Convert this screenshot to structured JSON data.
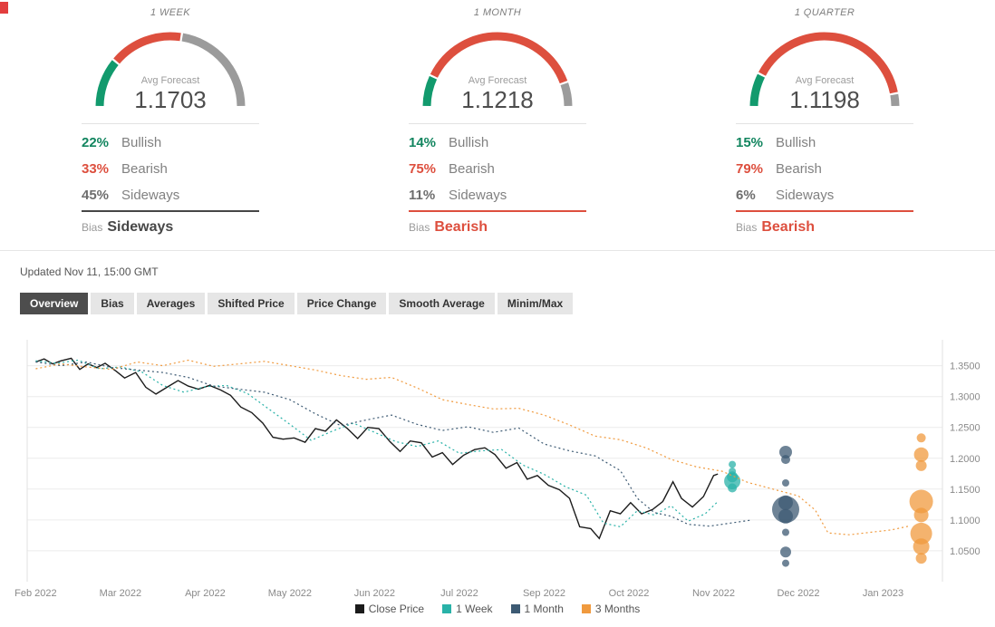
{
  "colors": {
    "bullish": "#129a6d",
    "bearish": "#dd4f3e",
    "sideways_arc": "#9b9b9b",
    "active_tab_bg": "#4d4d4d"
  },
  "panels": [
    {
      "period": "1 WEEK",
      "avg_label": "Avg Forecast",
      "avg_value": "1.1703",
      "bullish": 22,
      "bearish": 33,
      "sideways": 45,
      "rows": [
        {
          "pct": "22%",
          "label": "Bullish",
          "color": "#12855f"
        },
        {
          "pct": "33%",
          "label": "Bearish",
          "color": "#dd4f3e"
        },
        {
          "pct": "45%",
          "label": "Sideways",
          "color": "#6d6d6d"
        }
      ],
      "bias_label": "Bias",
      "bias": "Sideways",
      "bias_color": "#474747"
    },
    {
      "period": "1 MONTH",
      "avg_label": "Avg Forecast",
      "avg_value": "1.1218",
      "bullish": 14,
      "bearish": 75,
      "sideways": 11,
      "rows": [
        {
          "pct": "14%",
          "label": "Bullish",
          "color": "#12855f"
        },
        {
          "pct": "75%",
          "label": "Bearish",
          "color": "#dd4f3e"
        },
        {
          "pct": "11%",
          "label": "Sideways",
          "color": "#6d6d6d"
        }
      ],
      "bias_label": "Bias",
      "bias": "Bearish",
      "bias_color": "#dd4f3e"
    },
    {
      "period": "1 QUARTER",
      "avg_label": "Avg Forecast",
      "avg_value": "1.1198",
      "bullish": 15,
      "bearish": 79,
      "sideways": 6,
      "rows": [
        {
          "pct": "15%",
          "label": "Bullish",
          "color": "#12855f"
        },
        {
          "pct": "79%",
          "label": "Bearish",
          "color": "#dd4f3e"
        },
        {
          "pct": "6%",
          "label": "Sideways",
          "color": "#6d6d6d"
        }
      ],
      "bias_label": "Bias",
      "bias": "Bearish",
      "bias_color": "#dd4f3e"
    }
  ],
  "updated": "Updated Nov 11, 15:00 GMT",
  "tabs": [
    {
      "label": "Overview",
      "active": true
    },
    {
      "label": "Bias"
    },
    {
      "label": "Averages"
    },
    {
      "label": "Shifted Price"
    },
    {
      "label": "Price Change"
    },
    {
      "label": "Smooth Average"
    },
    {
      "label": "Minim/Max"
    }
  ],
  "chart_data": {
    "type": "line",
    "title": "",
    "xlabel": "",
    "ylabel": "",
    "grid": true,
    "legend_position": "bottom",
    "xlim": [
      -0.1,
      10.7
    ],
    "ylim": [
      1.0,
      1.392
    ],
    "x_tick_labels": [
      "Feb 2022",
      "Mar 2022",
      "Apr 2022",
      "May 2022",
      "Jun 2022",
      "Jul 2022",
      "Sep 2022",
      "Oct 2022",
      "Nov 2022",
      "Dec 2022",
      "Jan 2023"
    ],
    "y_ticks": [
      1.05,
      1.1,
      1.15,
      1.2,
      1.25,
      1.3,
      1.35
    ],
    "y_tick_labels": [
      "1.0500",
      "1.1000",
      "1.1500",
      "1.2000",
      "1.2500",
      "1.3000",
      "1.3500"
    ],
    "series": [
      {
        "name": "Close Price",
        "color": "#1b1b1b",
        "style": "solid",
        "points": [
          [
            0.0,
            1.356
          ],
          [
            0.1,
            1.361
          ],
          [
            0.2,
            1.353
          ],
          [
            0.3,
            1.358
          ],
          [
            0.42,
            1.362
          ],
          [
            0.52,
            1.344
          ],
          [
            0.62,
            1.353
          ],
          [
            0.72,
            1.347
          ],
          [
            0.82,
            1.354
          ],
          [
            0.95,
            1.341
          ],
          [
            1.05,
            1.33
          ],
          [
            1.18,
            1.339
          ],
          [
            1.3,
            1.315
          ],
          [
            1.42,
            1.304
          ],
          [
            1.55,
            1.315
          ],
          [
            1.68,
            1.326
          ],
          [
            1.8,
            1.317
          ],
          [
            1.92,
            1.312
          ],
          [
            2.05,
            1.318
          ],
          [
            2.18,
            1.311
          ],
          [
            2.3,
            1.302
          ],
          [
            2.42,
            1.283
          ],
          [
            2.55,
            1.274
          ],
          [
            2.68,
            1.257
          ],
          [
            2.8,
            1.234
          ],
          [
            2.92,
            1.231
          ],
          [
            3.05,
            1.233
          ],
          [
            3.18,
            1.226
          ],
          [
            3.3,
            1.248
          ],
          [
            3.42,
            1.244
          ],
          [
            3.55,
            1.262
          ],
          [
            3.68,
            1.248
          ],
          [
            3.8,
            1.232
          ],
          [
            3.92,
            1.25
          ],
          [
            4.05,
            1.248
          ],
          [
            4.18,
            1.227
          ],
          [
            4.3,
            1.211
          ],
          [
            4.42,
            1.228
          ],
          [
            4.55,
            1.225
          ],
          [
            4.68,
            1.202
          ],
          [
            4.8,
            1.209
          ],
          [
            4.92,
            1.19
          ],
          [
            5.05,
            1.205
          ],
          [
            5.18,
            1.214
          ],
          [
            5.3,
            1.217
          ],
          [
            5.42,
            1.206
          ],
          [
            5.55,
            1.184
          ],
          [
            5.68,
            1.193
          ],
          [
            5.8,
            1.166
          ],
          [
            5.92,
            1.172
          ],
          [
            6.05,
            1.156
          ],
          [
            6.18,
            1.149
          ],
          [
            6.3,
            1.135
          ],
          [
            6.42,
            1.089
          ],
          [
            6.55,
            1.086
          ],
          [
            6.65,
            1.07
          ],
          [
            6.78,
            1.115
          ],
          [
            6.9,
            1.11
          ],
          [
            7.02,
            1.128
          ],
          [
            7.15,
            1.11
          ],
          [
            7.28,
            1.117
          ],
          [
            7.4,
            1.13
          ],
          [
            7.52,
            1.162
          ],
          [
            7.62,
            1.135
          ],
          [
            7.75,
            1.121
          ],
          [
            7.88,
            1.138
          ],
          [
            8.0,
            1.172
          ],
          [
            8.05,
            1.1745
          ]
        ]
      },
      {
        "name": "1 Week",
        "color": "#29b2a8",
        "style": "dotted",
        "points": [
          [
            0.0,
            1.358
          ],
          [
            0.25,
            1.354
          ],
          [
            0.5,
            1.359
          ],
          [
            0.75,
            1.345
          ],
          [
            1.0,
            1.348
          ],
          [
            1.25,
            1.34
          ],
          [
            1.5,
            1.318
          ],
          [
            1.75,
            1.307
          ],
          [
            2.0,
            1.316
          ],
          [
            2.25,
            1.318
          ],
          [
            2.5,
            1.305
          ],
          [
            2.75,
            1.28
          ],
          [
            3.0,
            1.255
          ],
          [
            3.25,
            1.229
          ],
          [
            3.5,
            1.244
          ],
          [
            3.75,
            1.257
          ],
          [
            4.0,
            1.242
          ],
          [
            4.25,
            1.227
          ],
          [
            4.5,
            1.219
          ],
          [
            4.75,
            1.228
          ],
          [
            5.0,
            1.208
          ],
          [
            5.25,
            1.212
          ],
          [
            5.5,
            1.214
          ],
          [
            5.75,
            1.189
          ],
          [
            6.0,
            1.174
          ],
          [
            6.25,
            1.154
          ],
          [
            6.5,
            1.14
          ],
          [
            6.7,
            1.095
          ],
          [
            6.9,
            1.089
          ],
          [
            7.1,
            1.115
          ],
          [
            7.3,
            1.108
          ],
          [
            7.5,
            1.123
          ],
          [
            7.7,
            1.098
          ],
          [
            7.9,
            1.11
          ],
          [
            8.05,
            1.13
          ]
        ],
        "bubbles": {
          "x": 8.22,
          "items": [
            [
              1.19,
              4
            ],
            [
              1.179,
              4
            ],
            [
              1.17,
              6
            ],
            [
              1.163,
              9
            ],
            [
              1.152,
              5
            ]
          ]
        }
      },
      {
        "name": "1 Month",
        "color": "#3d5a73",
        "style": "dotted",
        "points": [
          [
            0.0,
            1.356
          ],
          [
            0.3,
            1.35
          ],
          [
            0.6,
            1.356
          ],
          [
            0.9,
            1.347
          ],
          [
            1.2,
            1.343
          ],
          [
            1.5,
            1.339
          ],
          [
            1.8,
            1.331
          ],
          [
            2.1,
            1.317
          ],
          [
            2.4,
            1.312
          ],
          [
            2.7,
            1.307
          ],
          [
            3.0,
            1.295
          ],
          [
            3.3,
            1.272
          ],
          [
            3.6,
            1.253
          ],
          [
            3.9,
            1.262
          ],
          [
            4.2,
            1.27
          ],
          [
            4.5,
            1.255
          ],
          [
            4.8,
            1.245
          ],
          [
            5.1,
            1.251
          ],
          [
            5.4,
            1.242
          ],
          [
            5.7,
            1.249
          ],
          [
            6.0,
            1.223
          ],
          [
            6.3,
            1.212
          ],
          [
            6.6,
            1.204
          ],
          [
            6.9,
            1.18
          ],
          [
            7.1,
            1.135
          ],
          [
            7.3,
            1.112
          ],
          [
            7.5,
            1.106
          ],
          [
            7.7,
            1.093
          ],
          [
            7.95,
            1.09
          ],
          [
            8.2,
            1.095
          ],
          [
            8.45,
            1.1
          ]
        ],
        "bubbles": {
          "x": 8.85,
          "items": [
            [
              1.21,
              7
            ],
            [
              1.198,
              5
            ],
            [
              1.16,
              4
            ],
            [
              1.128,
              8
            ],
            [
              1.117,
              15
            ],
            [
              1.106,
              8
            ],
            [
              1.08,
              4
            ],
            [
              1.048,
              6
            ],
            [
              1.03,
              4
            ]
          ]
        }
      },
      {
        "name": "3 Months",
        "color": "#f09a3e",
        "style": "dotted",
        "points": [
          [
            0.0,
            1.345
          ],
          [
            0.3,
            1.353
          ],
          [
            0.6,
            1.348
          ],
          [
            0.9,
            1.344
          ],
          [
            1.2,
            1.356
          ],
          [
            1.5,
            1.35
          ],
          [
            1.8,
            1.359
          ],
          [
            2.1,
            1.349
          ],
          [
            2.4,
            1.353
          ],
          [
            2.7,
            1.357
          ],
          [
            3.0,
            1.35
          ],
          [
            3.3,
            1.343
          ],
          [
            3.6,
            1.334
          ],
          [
            3.9,
            1.328
          ],
          [
            4.2,
            1.331
          ],
          [
            4.5,
            1.314
          ],
          [
            4.8,
            1.295
          ],
          [
            5.1,
            1.287
          ],
          [
            5.4,
            1.28
          ],
          [
            5.7,
            1.281
          ],
          [
            6.0,
            1.27
          ],
          [
            6.3,
            1.254
          ],
          [
            6.6,
            1.236
          ],
          [
            6.9,
            1.23
          ],
          [
            7.2,
            1.217
          ],
          [
            7.5,
            1.198
          ],
          [
            7.8,
            1.186
          ],
          [
            8.1,
            1.179
          ],
          [
            8.4,
            1.161
          ],
          [
            8.7,
            1.15
          ],
          [
            9.0,
            1.139
          ],
          [
            9.2,
            1.116
          ],
          [
            9.35,
            1.079
          ],
          [
            9.6,
            1.076
          ],
          [
            9.85,
            1.08
          ],
          [
            10.1,
            1.084
          ],
          [
            10.3,
            1.09
          ]
        ],
        "bubbles": {
          "x": 10.45,
          "items": [
            [
              1.233,
              5
            ],
            [
              1.206,
              8
            ],
            [
              1.188,
              6
            ],
            [
              1.13,
              13
            ],
            [
              1.108,
              8
            ],
            [
              1.078,
              12
            ],
            [
              1.057,
              9
            ],
            [
              1.038,
              6
            ]
          ]
        }
      }
    ]
  }
}
